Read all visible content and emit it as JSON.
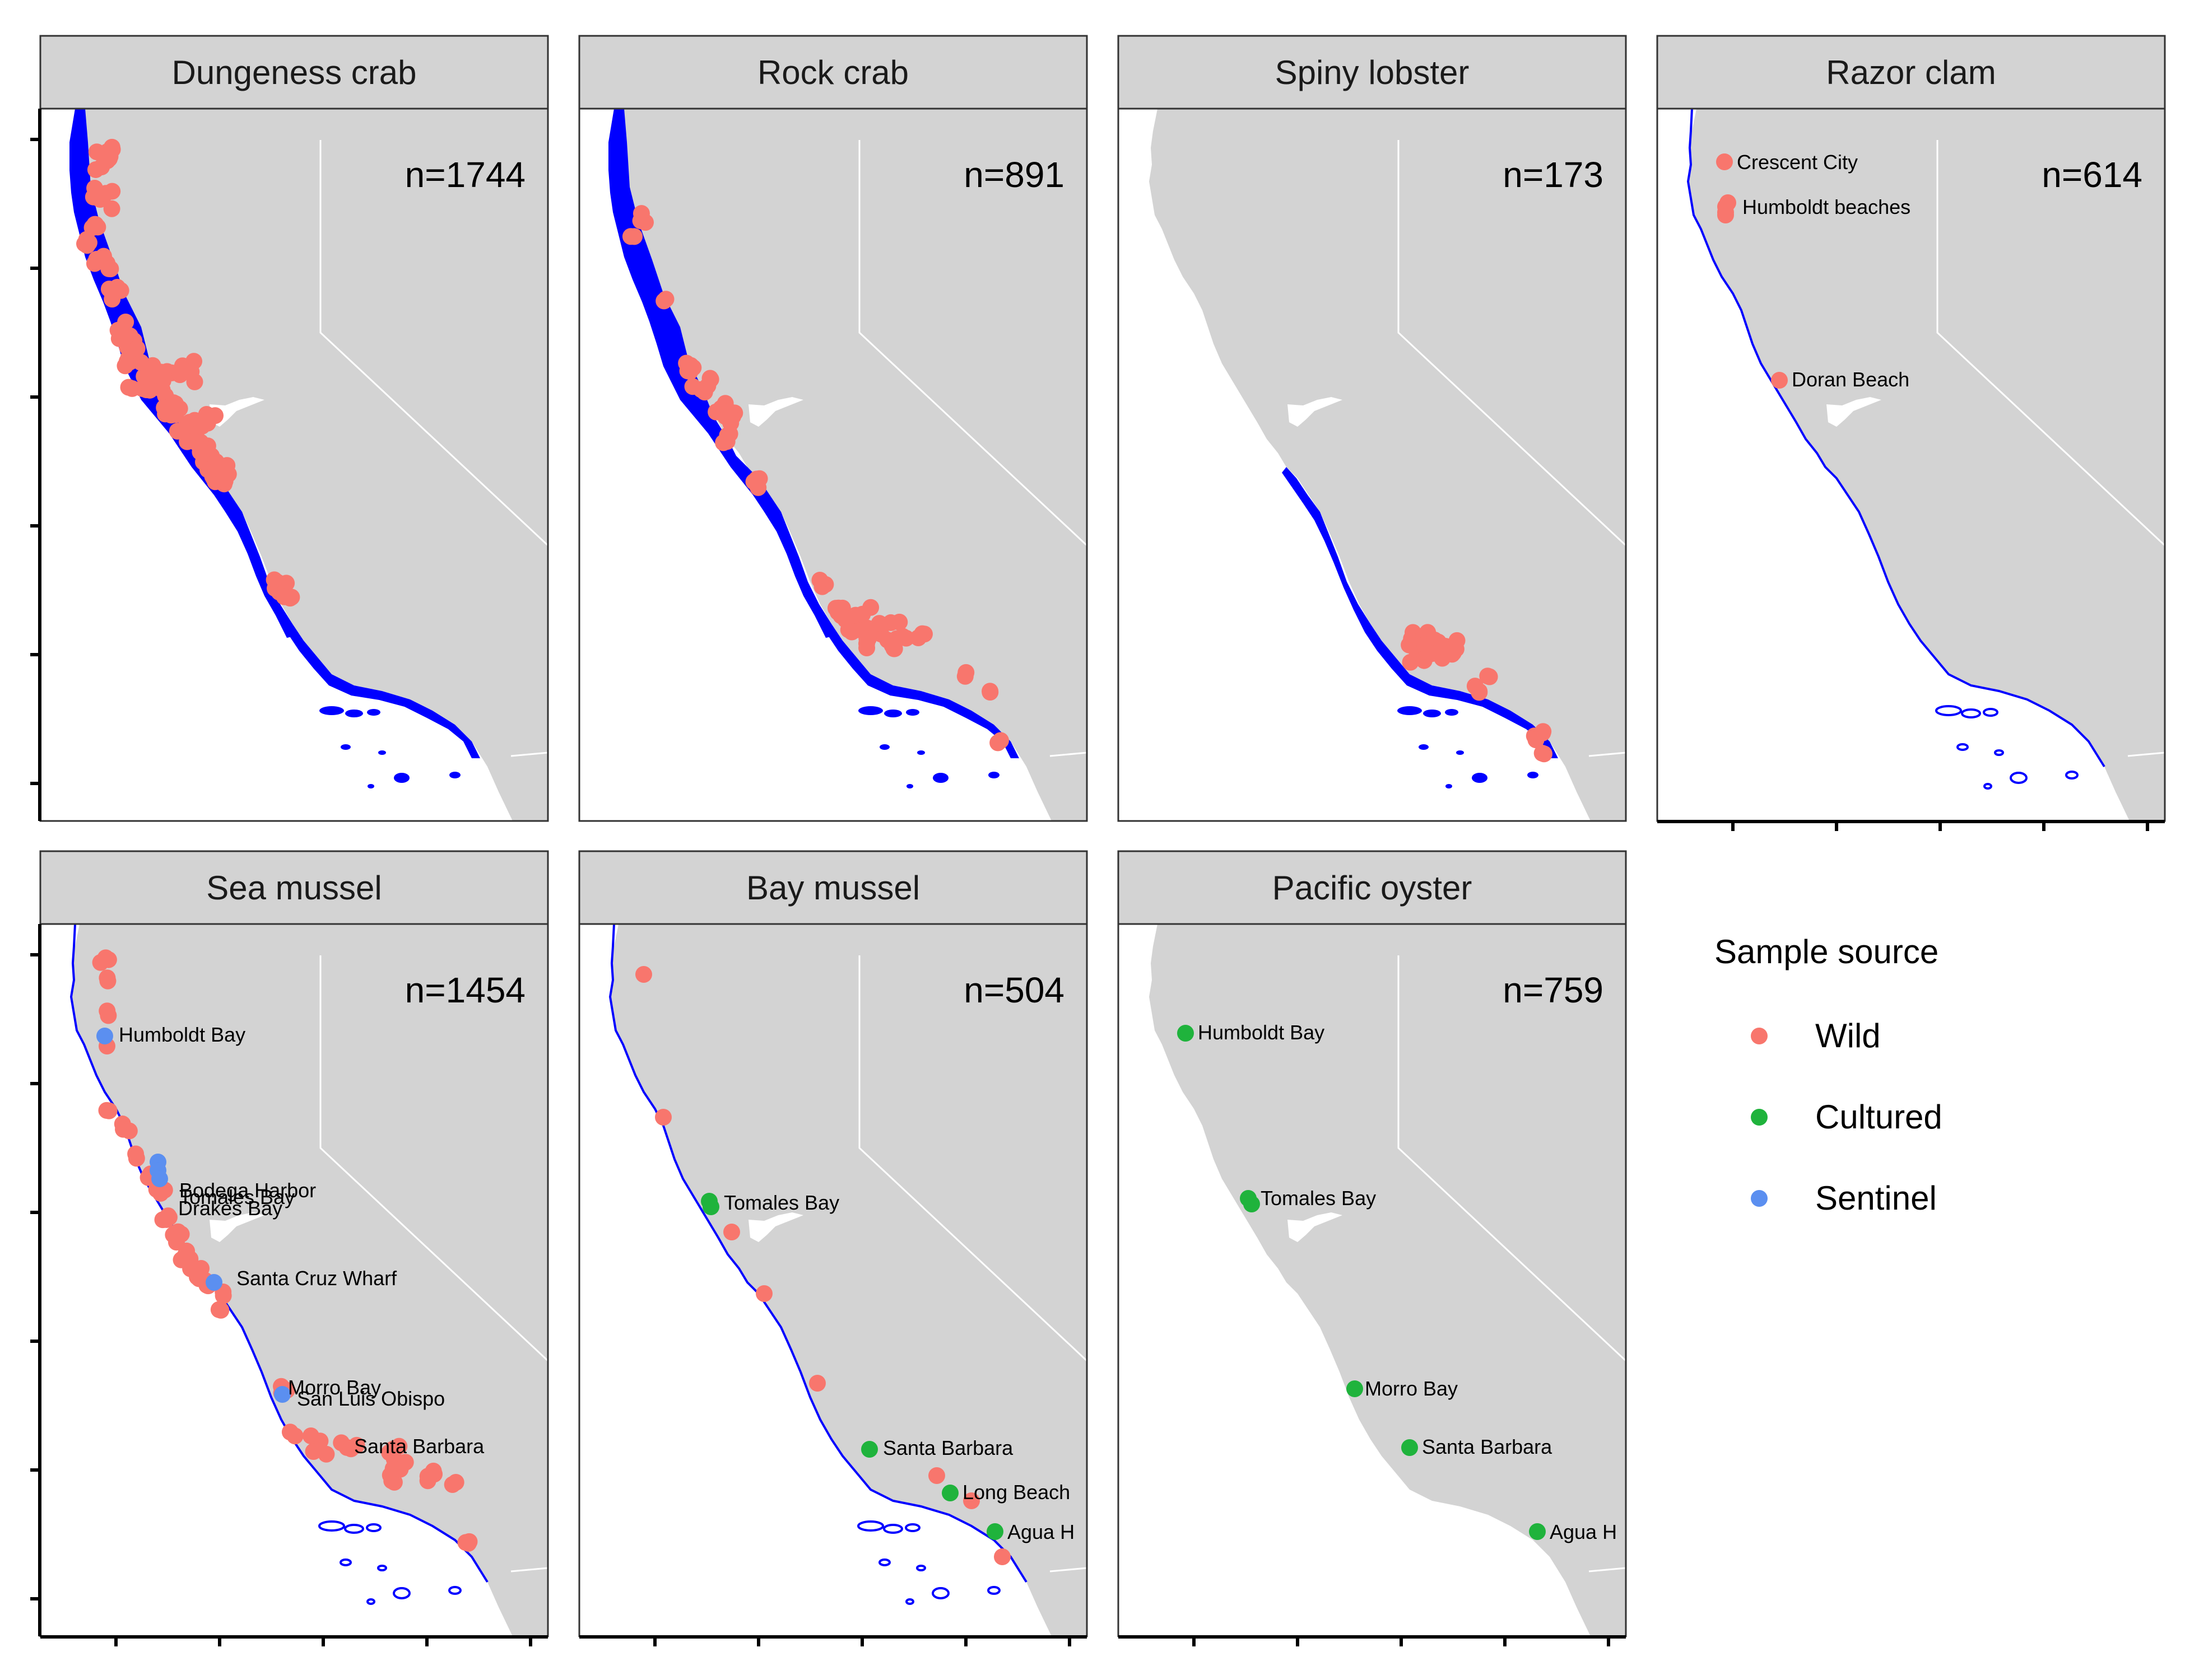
{
  "colors": {
    "wild": "#F8766D",
    "cultured": "#1FB33C",
    "sentinel": "#5B8FF0",
    "land": "#D3D3D3",
    "water": "#FFFFFF",
    "kelp_habitat": "#0000FF",
    "strip_fill": "#D3D3D3"
  },
  "legend": {
    "title": "Sample source",
    "items": [
      {
        "key": "wild",
        "label": "Wild"
      },
      {
        "key": "cultured",
        "label": "Cultured"
      },
      {
        "key": "sentinel",
        "label": "Sentinel"
      }
    ]
  },
  "panels": [
    {
      "id": "dungeness",
      "title": "Dungeness crab",
      "n": "n=1744",
      "habitat": "wide"
    },
    {
      "id": "rock",
      "title": "Rock crab",
      "n": "n=891",
      "habitat": "wide"
    },
    {
      "id": "spiny",
      "title": "Spiny lobster",
      "n": "n=173",
      "habitat": "south"
    },
    {
      "id": "razor",
      "title": "Razor clam",
      "n": "n=614",
      "habitat": "line",
      "labels": [
        "Crescent City",
        "Humboldt beaches",
        "Doran Beach"
      ]
    },
    {
      "id": "seamussel",
      "title": "Sea mussel",
      "n": "n=1454",
      "habitat": "line",
      "labels": [
        "Humboldt Bay",
        "Bodega Harbor",
        "Tomales Bay",
        "Drakes Bay",
        "Santa Cruz Wharf",
        "Morro Bay",
        "San Luis Obispo",
        "Santa Barbara"
      ]
    },
    {
      "id": "baymussel",
      "title": "Bay mussel",
      "n": "n=504",
      "habitat": "line",
      "labels": [
        "Tomales Bay",
        "Santa Barbara",
        "Long Beach",
        "Agua H"
      ]
    },
    {
      "id": "oyster",
      "title": "Pacific oyster",
      "n": "n=759",
      "habitat": "none",
      "labels": [
        "Humboldt Bay",
        "Tomales Bay",
        "Morro Bay",
        "Santa Barbara",
        "Agua H"
      ]
    }
  ]
}
